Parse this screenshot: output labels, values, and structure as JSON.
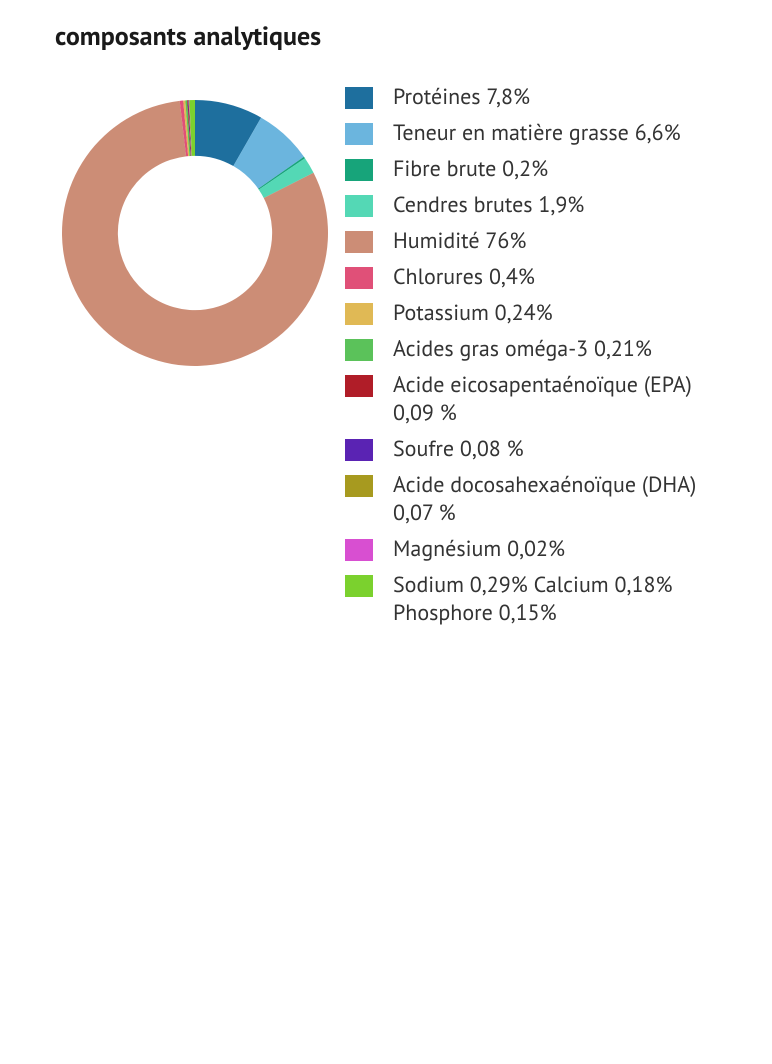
{
  "title": "composants analytiques",
  "chart": {
    "type": "donut",
    "inner_radius_ratio": 0.58,
    "background_color": "#ffffff",
    "title_fontsize": 26,
    "title_fontweight": 700,
    "legend_fontsize": 22,
    "swatch_width": 28,
    "swatch_height": 22,
    "start_angle_deg": 0,
    "direction": "clockwise",
    "segments": [
      {
        "label": "Protéines 7,8%",
        "value": 7.8,
        "color": "#1e6f9e"
      },
      {
        "label": "Teneur en matière grasse 6,6%",
        "value": 6.6,
        "color": "#6bb5de"
      },
      {
        "label": "Fibre brute 0,2%",
        "value": 0.2,
        "color": "#17a47a"
      },
      {
        "label": "Cendres brutes 1,9%",
        "value": 1.9,
        "color": "#54d8b5"
      },
      {
        "label": "Humidité 76%",
        "value": 76,
        "color": "#cc8d76"
      },
      {
        "label": "Chlorures 0,4%",
        "value": 0.4,
        "color": "#e05078"
      },
      {
        "label": "Potassium 0,24%",
        "value": 0.24,
        "color": "#e0b955"
      },
      {
        "label": "Acides gras oméga-3 0,21%",
        "value": 0.21,
        "color": "#5bc25a"
      },
      {
        "label": "Acide eicosapentaénoïque (EPA) 0,09 %",
        "value": 0.09,
        "color": "#b01d28"
      },
      {
        "label": "Soufre 0,08 %",
        "value": 0.08,
        "color": "#5a23b3"
      },
      {
        "label": "Acide docosahexaénoïque (DHA) 0,07 %",
        "value": 0.07,
        "color": "#a79a1f"
      },
      {
        "label": "Magnésium 0,02%",
        "value": 0.02,
        "color": "#d84fd1"
      },
      {
        "label": "Sodium 0,29% Calcium 0,18% Phosphore 0,15%",
        "value": 0.62,
        "color": "#7bd12e"
      }
    ]
  }
}
